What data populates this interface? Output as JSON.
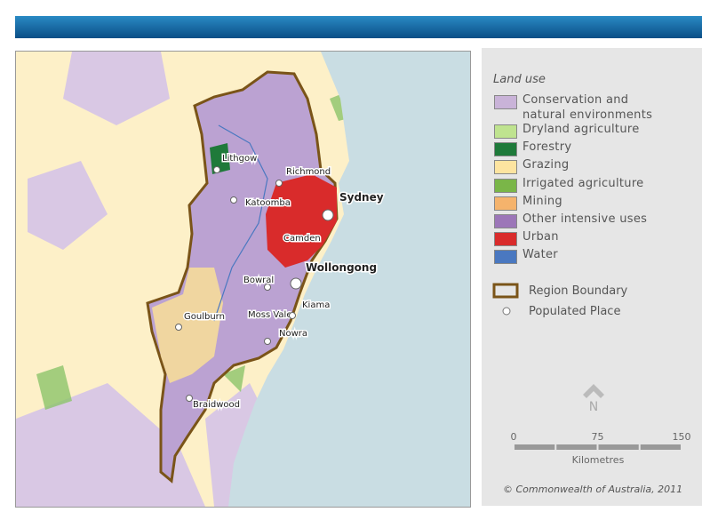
{
  "legend": {
    "title": "Land use",
    "items": [
      {
        "label": "Conservation and natural environments",
        "color": "#c9b3d8"
      },
      {
        "label": "Dryland agriculture",
        "color": "#bfe38f"
      },
      {
        "label": "Forestry",
        "color": "#1f7a3a"
      },
      {
        "label": "Grazing",
        "color": "#fde4a0"
      },
      {
        "label": "Irrigated agriculture",
        "color": "#7ab648"
      },
      {
        "label": "Mining",
        "color": "#f5b36c"
      },
      {
        "label": "Other intensive uses",
        "color": "#9c76b8"
      },
      {
        "label": "Urban",
        "color": "#d92b2b"
      },
      {
        "label": "Water",
        "color": "#4a78c0"
      }
    ],
    "boundary": "Region Boundary",
    "place": "Populated Place"
  },
  "places": [
    {
      "name": "Lithgow"
    },
    {
      "name": "Richmond"
    },
    {
      "name": "Sydney"
    },
    {
      "name": "Katoomba"
    },
    {
      "name": "Camden"
    },
    {
      "name": "Wollongong"
    },
    {
      "name": "Bowral"
    },
    {
      "name": "Goulburn"
    },
    {
      "name": "Moss Vale"
    },
    {
      "name": "Kiama"
    },
    {
      "name": "Nowra"
    },
    {
      "name": "Braidwood"
    }
  ],
  "north": "N",
  "scale": {
    "ticks": [
      0,
      75,
      150
    ],
    "unit": "Kilometres"
  },
  "copyright": "© Commonwealth of Australia, 2011"
}
